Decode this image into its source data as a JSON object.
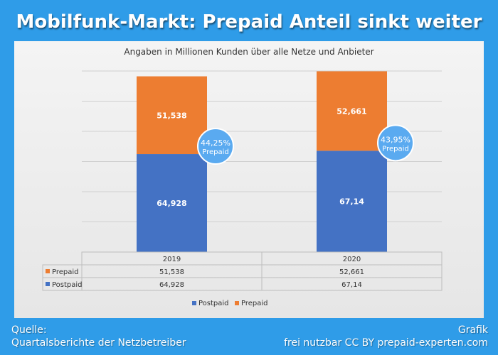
{
  "title": "Mobilfunk-Markt: Prepaid Anteil sinkt weiter",
  "chart_data": {
    "type": "bar",
    "stacked": true,
    "subtitle": "Angaben in Millionen Kunden über alle Netze und Anbieter",
    "categories": [
      "2019",
      "2020"
    ],
    "series": [
      {
        "name": "Postpaid",
        "values": [
          64.928,
          67.14
        ],
        "labels": [
          "64,928",
          "67,14"
        ],
        "color": "#4472c4"
      },
      {
        "name": "Prepaid",
        "values": [
          51.538,
          52.661
        ],
        "labels": [
          "51,538",
          "52,661"
        ],
        "color": "#ed7d31"
      }
    ],
    "share_bubbles": [
      {
        "category": "2019",
        "percent": "44,25%",
        "label": "Prepaid"
      },
      {
        "category": "2020",
        "percent": "43,95%",
        "label": "Prepaid"
      }
    ],
    "ylim": [
      0,
      120
    ],
    "grid": true,
    "legend_placement": "bottom",
    "data_table_rows": [
      "Prepaid",
      "Postpaid"
    ],
    "bubble_color": "#5aaaf0",
    "background_color": "#2f9ce8"
  },
  "footer": {
    "source_label": "Quelle:",
    "source_text": "Quartalsberichte der Netzbetreiber",
    "right_line1": "Grafik",
    "right_line2": "frei nutzbar CC BY prepaid-experten.com"
  }
}
